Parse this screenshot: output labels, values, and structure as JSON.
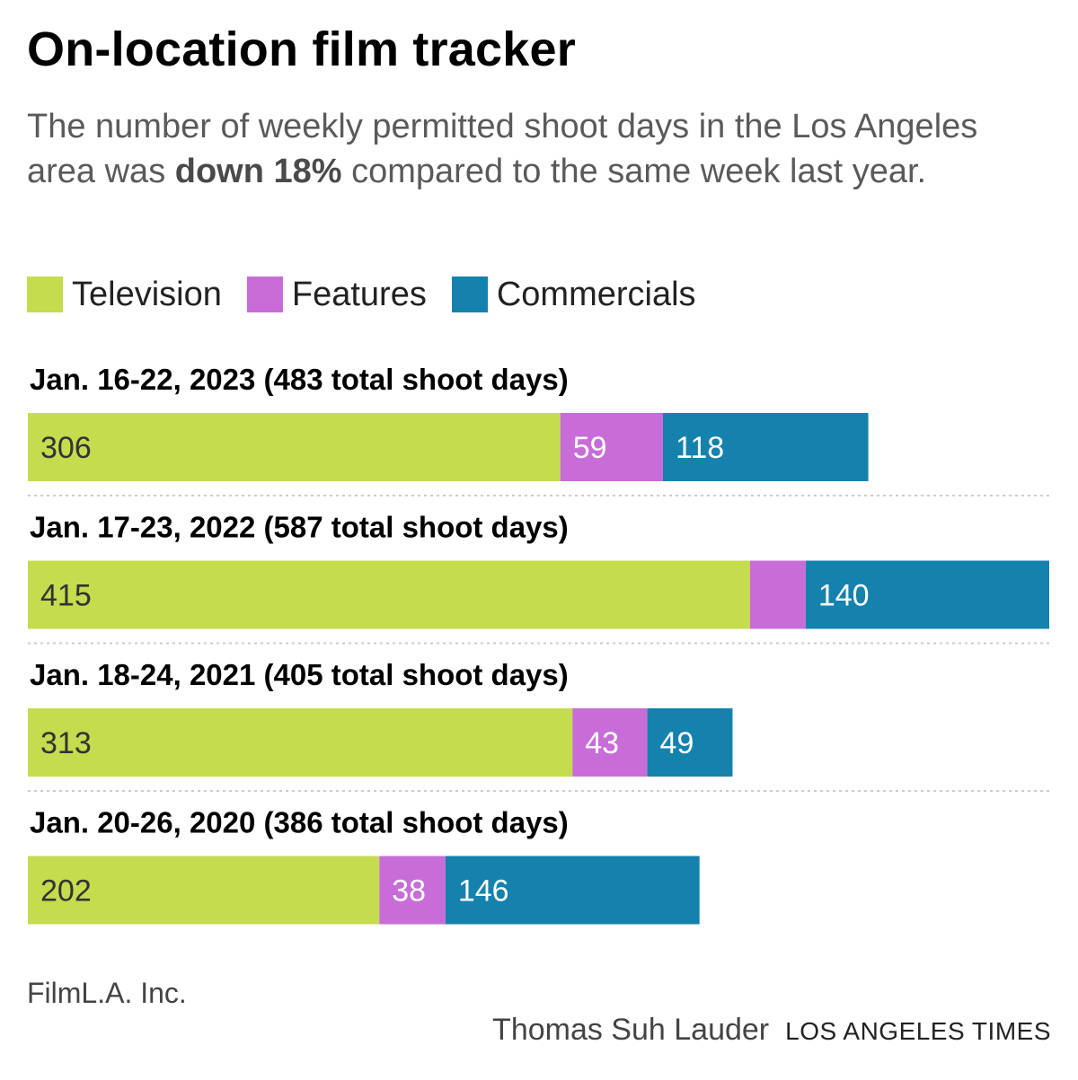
{
  "title": "On-location film tracker",
  "subtitle": {
    "before": "The number of weekly permitted shoot days in the Los Angeles area was ",
    "bold": "down 18%",
    "after": " compared to the same week last year."
  },
  "colors": {
    "television": "#c4dc4e",
    "features": "#c86dd7",
    "commercials": "#1482ad",
    "separator": "#cccccc"
  },
  "chart_data": {
    "type": "bar",
    "orientation": "horizontal",
    "stacked": true,
    "legend_position": "top-left",
    "grid": false,
    "series": [
      {
        "name": "Television",
        "key": "television"
      },
      {
        "name": "Features",
        "key": "features"
      },
      {
        "name": "Commercials",
        "key": "commercials"
      }
    ],
    "groups": [
      {
        "label": "Jan. 16-22, 2023 (483 total shoot days)",
        "values": [
          306,
          59,
          118
        ],
        "value_labels": [
          "306",
          "59",
          "118"
        ]
      },
      {
        "label": "Jan. 17-23, 2022 (587 total shoot days)",
        "values": [
          415,
          32,
          140
        ],
        "value_labels": [
          "415",
          "",
          "140"
        ]
      },
      {
        "label": "Jan. 18-24, 2021 (405 total shoot days)",
        "values": [
          313,
          43,
          49
        ],
        "value_labels": [
          "313",
          "43",
          "49"
        ]
      },
      {
        "label": "Jan. 20-26, 2020 (386 total shoot days)",
        "values": [
          202,
          38,
          146
        ],
        "value_labels": [
          "202",
          "38",
          "146"
        ]
      }
    ],
    "xlim": [
      0,
      587
    ]
  },
  "footer": {
    "source": "FilmL.A. Inc.",
    "author": "Thomas Suh Lauder",
    "organization": "LOS ANGELES TIMES"
  }
}
